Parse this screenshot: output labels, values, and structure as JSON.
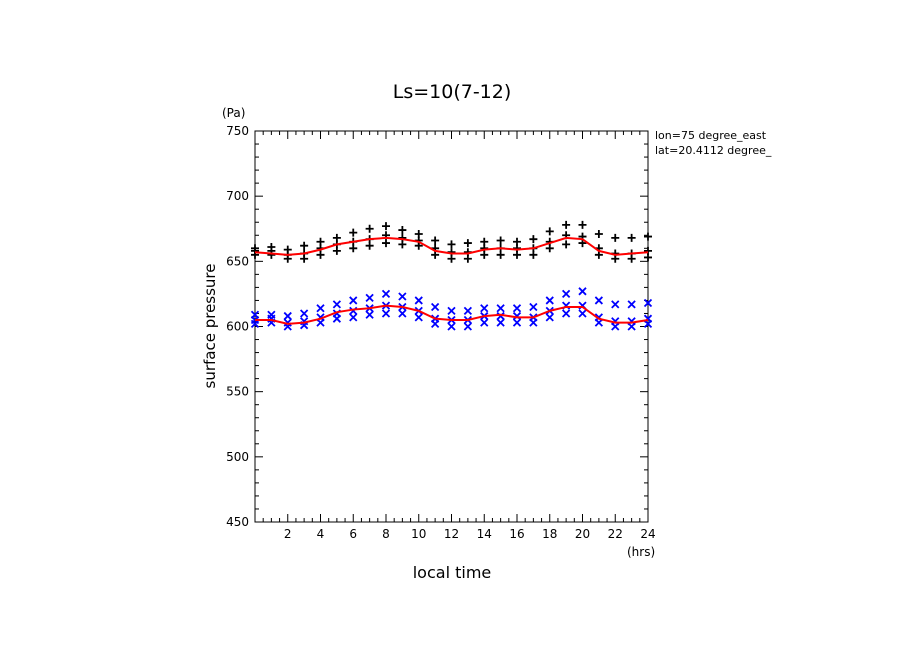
{
  "chart_data": {
    "type": "scatter",
    "title": "Ls=10(7-12)",
    "xlabel": "local time",
    "xunit": "(hrs)",
    "ylabel": "surface pressure",
    "yunit": "(Pa)",
    "annotations": [
      "lon=75 degree_east",
      "lat=20.4112 degree_"
    ],
    "xlim": [
      0,
      24
    ],
    "ylim": [
      450,
      750
    ],
    "xticks": [
      2,
      4,
      6,
      8,
      10,
      12,
      14,
      16,
      18,
      20,
      22,
      24
    ],
    "yticks": [
      450,
      500,
      550,
      600,
      650,
      700,
      750
    ],
    "grid": false,
    "colors": {
      "upper_markers": "#000000",
      "lower_markers": "#0000ff",
      "mean_line": "#ff0000"
    },
    "series": [
      {
        "marker": "plus",
        "x": [
          0,
          0,
          0,
          1,
          1,
          1,
          2,
          2,
          2,
          3,
          3,
          3,
          4,
          4,
          4,
          5,
          5,
          5,
          6,
          6,
          6,
          7,
          7,
          7,
          8,
          8,
          8,
          9,
          9,
          9,
          10,
          10,
          10,
          11,
          11,
          11,
          12,
          12,
          12,
          13,
          13,
          13,
          14,
          14,
          14,
          15,
          15,
          15,
          16,
          16,
          16,
          17,
          17,
          17,
          18,
          18,
          18,
          19,
          19,
          19,
          20,
          20,
          20,
          21,
          21,
          21,
          22,
          22,
          22,
          23,
          23,
          23,
          24,
          24,
          24
        ],
        "y": [
          655,
          658,
          660,
          655,
          658,
          661,
          652,
          655,
          659,
          652,
          656,
          662,
          655,
          660,
          665,
          658,
          663,
          668,
          660,
          665,
          672,
          662,
          667,
          675,
          664,
          670,
          677,
          663,
          668,
          674,
          662,
          666,
          671,
          655,
          660,
          666,
          652,
          657,
          663,
          652,
          657,
          664,
          655,
          660,
          665,
          655,
          660,
          666,
          655,
          660,
          665,
          655,
          660,
          667,
          660,
          665,
          673,
          663,
          670,
          678,
          664,
          669,
          678,
          655,
          660,
          671,
          652,
          656,
          668,
          652,
          656,
          668,
          653,
          658,
          669
        ]
      },
      {
        "marker": "x",
        "x": [
          0,
          0,
          0,
          1,
          1,
          1,
          2,
          2,
          2,
          3,
          3,
          3,
          4,
          4,
          4,
          5,
          5,
          5,
          6,
          6,
          6,
          7,
          7,
          7,
          8,
          8,
          8,
          9,
          9,
          9,
          10,
          10,
          10,
          11,
          11,
          11,
          12,
          12,
          12,
          13,
          13,
          13,
          14,
          14,
          14,
          15,
          15,
          15,
          16,
          16,
          16,
          17,
          17,
          17,
          18,
          18,
          18,
          19,
          19,
          19,
          20,
          20,
          20,
          21,
          21,
          21,
          22,
          22,
          22,
          23,
          23,
          23,
          24,
          24,
          24
        ],
        "y": [
          602,
          605,
          609,
          603,
          606,
          609,
          600,
          603,
          608,
          601,
          604,
          610,
          603,
          607,
          614,
          606,
          610,
          617,
          607,
          612,
          620,
          609,
          614,
          622,
          610,
          616,
          625,
          610,
          615,
          623,
          607,
          612,
          620,
          602,
          606,
          615,
          600,
          605,
          612,
          600,
          605,
          612,
          603,
          608,
          614,
          603,
          608,
          614,
          603,
          608,
          614,
          603,
          607,
          615,
          607,
          612,
          620,
          610,
          616,
          625,
          610,
          616,
          627,
          603,
          607,
          620,
          600,
          604,
          617,
          600,
          604,
          617,
          602,
          606,
          618
        ]
      },
      {
        "marker": "line",
        "x": [
          0,
          1,
          2,
          3,
          4,
          5,
          6,
          7,
          8,
          9,
          10,
          11,
          12,
          13,
          14,
          15,
          16,
          17,
          18,
          19,
          20,
          21,
          22,
          23,
          24
        ],
        "y": [
          657,
          656,
          655,
          656,
          659,
          663,
          665,
          667,
          668,
          667,
          665,
          658,
          656,
          656,
          659,
          660,
          659,
          660,
          664,
          668,
          667,
          658,
          655,
          656,
          657
        ]
      },
      {
        "marker": "line",
        "x": [
          0,
          1,
          2,
          3,
          4,
          5,
          6,
          7,
          8,
          9,
          10,
          11,
          12,
          13,
          14,
          15,
          16,
          17,
          18,
          19,
          20,
          21,
          22,
          23,
          24
        ],
        "y": [
          605,
          605,
          602,
          603,
          606,
          611,
          613,
          614,
          616,
          615,
          612,
          606,
          605,
          605,
          608,
          609,
          607,
          607,
          612,
          615,
          615,
          606,
          603,
          603,
          605
        ]
      }
    ]
  }
}
